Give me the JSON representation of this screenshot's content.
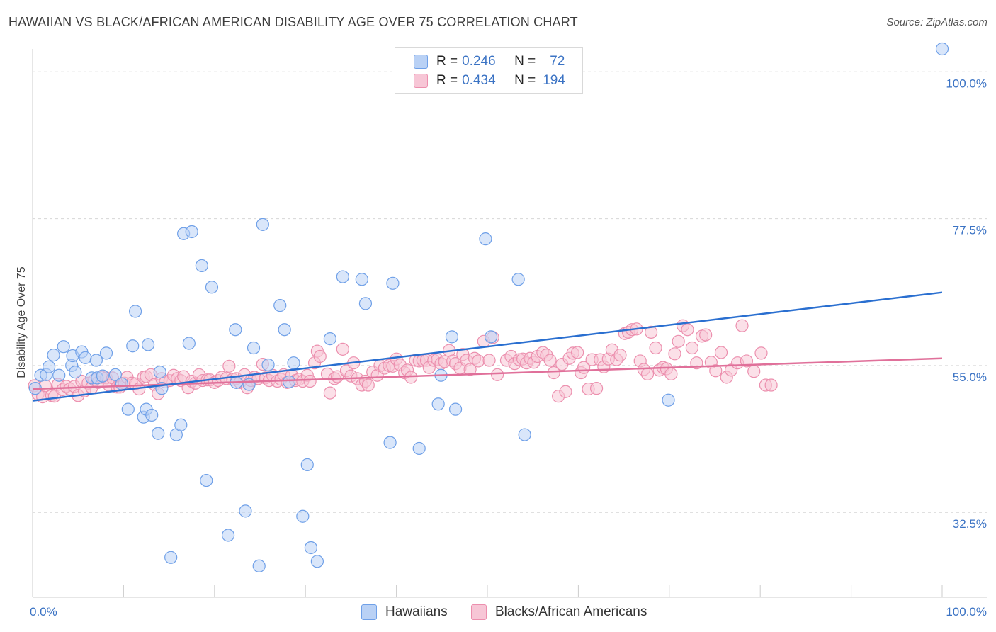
{
  "header": {
    "title": "HAWAIIAN VS BLACK/AFRICAN AMERICAN DISABILITY AGE OVER 75 CORRELATION CHART",
    "source": "Source: ZipAtlas.com"
  },
  "colors": {
    "blue": "#6fa0e8",
    "blue_fill": "#b9d1f5",
    "blue_line": "#2a6fd0",
    "pink": "#ec8fae",
    "pink_fill": "#f7c6d6",
    "pink_line": "#e0709a",
    "tick_text": "#3b73c4",
    "grid": "#d6d6d6"
  },
  "legend": {
    "rows": [
      {
        "r_label": "R =",
        "r_value": "0.246",
        "n_label": "N =",
        "n_value": "72",
        "color": "blue"
      },
      {
        "r_label": "R =",
        "r_value": "0.434",
        "n_label": "N =",
        "n_value": "194",
        "color": "pink"
      }
    ],
    "bottom": [
      {
        "label": "Hawaiians",
        "color": "blue"
      },
      {
        "label": "Blacks/African Americans",
        "color": "pink"
      }
    ]
  },
  "chart_data": {
    "type": "scatter",
    "title": "HAWAIIAN VS BLACK/AFRICAN AMERICAN DISABILITY AGE OVER 75 CORRELATION CHART",
    "xlabel": "",
    "ylabel": "Disability Age Over 75",
    "xlim": [
      0,
      100
    ],
    "ylim": [
      19.5,
      103.5
    ],
    "x_tick_labels": [
      "0.0%",
      "100.0%"
    ],
    "y_ticks": [
      {
        "value": 100.0,
        "label": "100.0%"
      },
      {
        "value": 77.5,
        "label": "77.5%"
      },
      {
        "value": 55.0,
        "label": "55.0%"
      },
      {
        "value": 32.5,
        "label": "32.5%"
      }
    ],
    "grid": "horizontal dashed",
    "legend_position": "top-center",
    "series": [
      {
        "name": "Hawaiians",
        "color": "blue",
        "trend": {
          "x": [
            0,
            100
          ],
          "y": [
            49.6,
            66.2
          ]
        },
        "points": [
          [
            0.3,
            51.5
          ],
          [
            0.9,
            53.5
          ],
          [
            1.5,
            53.6
          ],
          [
            1.8,
            54.8
          ],
          [
            2.3,
            56.6
          ],
          [
            2.9,
            53.5
          ],
          [
            3.4,
            57.9
          ],
          [
            4.3,
            55.0
          ],
          [
            4.4,
            56.5
          ],
          [
            4.7,
            54.0
          ],
          [
            5.4,
            57.1
          ],
          [
            5.8,
            56.2
          ],
          [
            6.5,
            53.1
          ],
          [
            7.0,
            55.8
          ],
          [
            7.1,
            53.1
          ],
          [
            7.7,
            53.4
          ],
          [
            8.1,
            56.9
          ],
          [
            9.1,
            53.6
          ],
          [
            9.8,
            52.2
          ],
          [
            10.5,
            48.3
          ],
          [
            11.0,
            58.0
          ],
          [
            11.3,
            63.3
          ],
          [
            12.2,
            47.1
          ],
          [
            12.5,
            48.3
          ],
          [
            12.7,
            58.2
          ],
          [
            13.1,
            47.4
          ],
          [
            13.8,
            44.6
          ],
          [
            14.0,
            54.0
          ],
          [
            14.2,
            51.5
          ],
          [
            15.2,
            25.6
          ],
          [
            15.8,
            44.4
          ],
          [
            16.3,
            45.9
          ],
          [
            16.6,
            75.2
          ],
          [
            17.5,
            75.5
          ],
          [
            17.2,
            58.4
          ],
          [
            18.6,
            70.3
          ],
          [
            19.1,
            37.4
          ],
          [
            19.7,
            67.0
          ],
          [
            21.5,
            29.0
          ],
          [
            22.4,
            52.4
          ],
          [
            22.3,
            60.5
          ],
          [
            23.4,
            32.7
          ],
          [
            23.8,
            52.1
          ],
          [
            24.3,
            57.7
          ],
          [
            24.9,
            24.3
          ],
          [
            25.3,
            76.6
          ],
          [
            25.9,
            55.1
          ],
          [
            27.2,
            64.2
          ],
          [
            27.7,
            60.5
          ],
          [
            28.2,
            52.5
          ],
          [
            28.7,
            55.4
          ],
          [
            29.7,
            31.9
          ],
          [
            30.2,
            39.8
          ],
          [
            30.6,
            27.1
          ],
          [
            31.3,
            25.0
          ],
          [
            32.7,
            59.1
          ],
          [
            34.1,
            68.6
          ],
          [
            36.2,
            68.2
          ],
          [
            36.6,
            64.5
          ],
          [
            39.3,
            43.2
          ],
          [
            39.6,
            67.6
          ],
          [
            42.5,
            42.3
          ],
          [
            44.6,
            49.1
          ],
          [
            44.9,
            53.5
          ],
          [
            46.1,
            59.4
          ],
          [
            46.5,
            48.3
          ],
          [
            49.8,
            74.4
          ],
          [
            50.4,
            59.4
          ],
          [
            53.4,
            68.2
          ],
          [
            54.1,
            44.4
          ],
          [
            69.9,
            49.7
          ],
          [
            100.0,
            103.5
          ]
        ]
      },
      {
        "name": "Blacks/African Americans",
        "color": "pink",
        "trend": {
          "x": [
            0,
            100
          ],
          "y": [
            51.4,
            56.1
          ]
        },
        "points": [
          [
            0.2,
            51.9
          ],
          [
            0.6,
            50.6
          ],
          [
            1.1,
            50.2
          ],
          [
            1.4,
            51.9
          ],
          [
            2.1,
            50.4
          ],
          [
            2.4,
            50.3
          ],
          [
            2.8,
            52.1
          ],
          [
            3.3,
            51.3
          ],
          [
            3.7,
            51.8
          ],
          [
            4.1,
            51.4
          ],
          [
            4.6,
            51.8
          ],
          [
            5.0,
            50.4
          ],
          [
            5.4,
            52.6
          ],
          [
            5.7,
            51.1
          ],
          [
            6.1,
            52.3
          ],
          [
            6.5,
            51.6
          ],
          [
            6.8,
            52.8
          ],
          [
            7.2,
            52.4
          ],
          [
            7.6,
            53.2
          ],
          [
            8.1,
            53.1
          ],
          [
            8.4,
            52.0
          ],
          [
            8.8,
            53.1
          ],
          [
            9.3,
            51.7
          ],
          [
            9.6,
            51.7
          ],
          [
            10.1,
            52.3
          ],
          [
            10.4,
            53.2
          ],
          [
            10.9,
            52.3
          ],
          [
            11.3,
            52.2
          ],
          [
            11.7,
            51.4
          ],
          [
            12.2,
            53.2
          ],
          [
            12.5,
            53.3
          ],
          [
            13.0,
            53.6
          ],
          [
            13.4,
            52.1
          ],
          [
            13.8,
            50.7
          ],
          [
            14.2,
            53.0
          ],
          [
            14.6,
            52.5
          ],
          [
            15.1,
            52.7
          ],
          [
            15.5,
            53.5
          ],
          [
            15.9,
            53.0
          ],
          [
            16.3,
            52.7
          ],
          [
            16.6,
            53.3
          ],
          [
            17.1,
            51.6
          ],
          [
            17.5,
            52.6
          ],
          [
            17.9,
            52.3
          ],
          [
            18.3,
            53.6
          ],
          [
            18.7,
            52.7
          ],
          [
            19.2,
            52.8
          ],
          [
            19.5,
            52.8
          ],
          [
            20.0,
            52.4
          ],
          [
            20.4,
            52.7
          ],
          [
            20.8,
            53.2
          ],
          [
            21.3,
            53.0
          ],
          [
            21.6,
            54.9
          ],
          [
            22.0,
            52.9
          ],
          [
            22.4,
            53.0
          ],
          [
            22.8,
            52.4
          ],
          [
            23.3,
            53.6
          ],
          [
            23.6,
            51.6
          ],
          [
            24.0,
            52.7
          ],
          [
            24.4,
            53.2
          ],
          [
            24.8,
            53.0
          ],
          [
            25.3,
            55.2
          ],
          [
            25.6,
            53.1
          ],
          [
            26.0,
            52.7
          ],
          [
            26.4,
            53.5
          ],
          [
            26.9,
            52.6
          ],
          [
            27.3,
            52.9
          ],
          [
            27.6,
            53.6
          ],
          [
            28.0,
            52.4
          ],
          [
            28.5,
            53.5
          ],
          [
            28.9,
            52.7
          ],
          [
            29.3,
            52.9
          ],
          [
            29.7,
            52.6
          ],
          [
            30.2,
            53.5
          ],
          [
            30.5,
            52.6
          ],
          [
            31.0,
            55.4
          ],
          [
            31.3,
            57.2
          ],
          [
            31.6,
            56.4
          ],
          [
            32.4,
            53.7
          ],
          [
            32.7,
            50.8
          ],
          [
            33.2,
            53.0
          ],
          [
            33.5,
            53.3
          ],
          [
            34.1,
            57.5
          ],
          [
            34.5,
            54.2
          ],
          [
            35.0,
            53.4
          ],
          [
            35.3,
            55.4
          ],
          [
            35.7,
            53.0
          ],
          [
            36.2,
            52.0
          ],
          [
            36.6,
            52.6
          ],
          [
            36.9,
            52.0
          ],
          [
            37.4,
            54.0
          ],
          [
            37.9,
            53.5
          ],
          [
            38.2,
            55.0
          ],
          [
            38.7,
            54.6
          ],
          [
            39.2,
            55.0
          ],
          [
            39.6,
            54.9
          ],
          [
            40.0,
            56.0
          ],
          [
            40.4,
            55.1
          ],
          [
            40.9,
            53.9
          ],
          [
            41.2,
            54.3
          ],
          [
            41.6,
            53.2
          ],
          [
            42.1,
            55.8
          ],
          [
            42.5,
            55.7
          ],
          [
            42.9,
            55.8
          ],
          [
            43.3,
            55.8
          ],
          [
            43.6,
            54.7
          ],
          [
            44.1,
            55.8
          ],
          [
            44.5,
            55.9
          ],
          [
            44.9,
            55.3
          ],
          [
            45.3,
            55.6
          ],
          [
            45.8,
            57.3
          ],
          [
            46.2,
            55.7
          ],
          [
            46.5,
            55.3
          ],
          [
            47.0,
            54.6
          ],
          [
            47.3,
            56.7
          ],
          [
            47.7,
            55.8
          ],
          [
            48.1,
            54.4
          ],
          [
            48.6,
            56.1
          ],
          [
            49.0,
            55.7
          ],
          [
            49.6,
            58.7
          ],
          [
            50.2,
            55.8
          ],
          [
            50.6,
            59.3
          ],
          [
            51.1,
            53.6
          ],
          [
            52.1,
            55.8
          ],
          [
            52.6,
            56.4
          ],
          [
            53.0,
            55.3
          ],
          [
            53.5,
            55.9
          ],
          [
            53.9,
            56.0
          ],
          [
            54.3,
            55.4
          ],
          [
            54.7,
            56.1
          ],
          [
            55.1,
            55.5
          ],
          [
            55.5,
            56.4
          ],
          [
            56.1,
            57.0
          ],
          [
            56.5,
            56.6
          ],
          [
            56.9,
            55.8
          ],
          [
            57.3,
            53.9
          ],
          [
            57.8,
            50.3
          ],
          [
            58.2,
            55.2
          ],
          [
            58.6,
            51.0
          ],
          [
            59.0,
            56.1
          ],
          [
            59.4,
            56.9
          ],
          [
            59.9,
            57.0
          ],
          [
            60.3,
            53.9
          ],
          [
            60.6,
            54.7
          ],
          [
            61.1,
            51.4
          ],
          [
            61.5,
            55.9
          ],
          [
            62.0,
            51.5
          ],
          [
            62.4,
            55.9
          ],
          [
            62.8,
            54.8
          ],
          [
            63.3,
            56.0
          ],
          [
            63.7,
            57.4
          ],
          [
            64.2,
            55.9
          ],
          [
            64.6,
            56.6
          ],
          [
            65.1,
            59.9
          ],
          [
            65.5,
            60.1
          ],
          [
            65.9,
            60.5
          ],
          [
            66.4,
            60.6
          ],
          [
            66.8,
            55.7
          ],
          [
            67.2,
            54.4
          ],
          [
            67.6,
            53.7
          ],
          [
            68.0,
            60.1
          ],
          [
            68.5,
            57.7
          ],
          [
            68.9,
            54.3
          ],
          [
            69.3,
            54.7
          ],
          [
            69.7,
            54.5
          ],
          [
            70.2,
            53.7
          ],
          [
            70.6,
            56.8
          ],
          [
            71.0,
            58.7
          ],
          [
            71.5,
            61.1
          ],
          [
            72.0,
            60.5
          ],
          [
            72.5,
            57.7
          ],
          [
            73.0,
            55.4
          ],
          [
            73.6,
            59.5
          ],
          [
            74.0,
            59.7
          ],
          [
            74.6,
            55.5
          ],
          [
            75.1,
            54.2
          ],
          [
            75.7,
            57.0
          ],
          [
            76.3,
            53.2
          ],
          [
            76.8,
            54.3
          ],
          [
            77.5,
            55.4
          ],
          [
            78.0,
            61.1
          ],
          [
            78.5,
            55.7
          ],
          [
            79.3,
            54.1
          ],
          [
            80.1,
            56.9
          ],
          [
            80.6,
            52.0
          ],
          [
            81.2,
            52.0
          ]
        ]
      }
    ]
  }
}
